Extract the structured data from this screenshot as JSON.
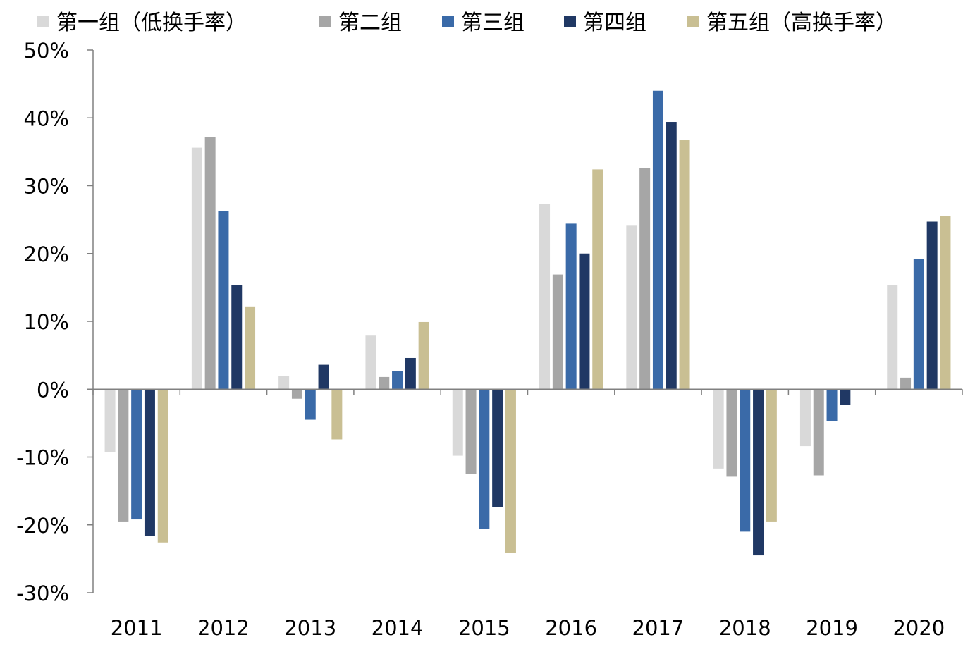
{
  "chart_data": {
    "type": "bar",
    "title": "",
    "xlabel": "",
    "ylabel": "",
    "categories": [
      "2011",
      "2012",
      "2013",
      "2014",
      "2015",
      "2016",
      "2017",
      "2018",
      "2019",
      "2020"
    ],
    "ylim": [
      -30,
      50
    ],
    "yticks": [
      "50%",
      "40%",
      "30%",
      "20%",
      "10%",
      "0%",
      "-10%",
      "-20%",
      "-30%"
    ],
    "grid": false,
    "legend_position": "top",
    "series": [
      {
        "name": "第一组（低换手率）",
        "color": "#d9d9d9",
        "values": [
          -9.3,
          35.6,
          2.0,
          7.9,
          -9.8,
          27.3,
          24.2,
          -11.7,
          -8.4,
          15.4
        ]
      },
      {
        "name": "第二组",
        "color": "#a6a6a6",
        "values": [
          -19.5,
          37.2,
          -1.4,
          1.8,
          -12.5,
          16.9,
          32.6,
          -12.9,
          -12.7,
          1.7
        ]
      },
      {
        "name": "第三组",
        "color": "#3a6aa8",
        "values": [
          -19.2,
          26.3,
          -4.5,
          2.7,
          -20.6,
          24.4,
          44.0,
          -21.0,
          -4.7,
          19.2
        ]
      },
      {
        "name": "第四组",
        "color": "#203864",
        "values": [
          -21.6,
          15.3,
          3.6,
          4.6,
          -17.4,
          20.0,
          39.4,
          -24.5,
          -2.3,
          24.7
        ]
      },
      {
        "name": "第五组（高换手率）",
        "color": "#c9bf93",
        "values": [
          -22.6,
          12.2,
          -7.4,
          9.9,
          -24.1,
          32.4,
          36.7,
          -19.5,
          0,
          25.5
        ]
      }
    ]
  }
}
